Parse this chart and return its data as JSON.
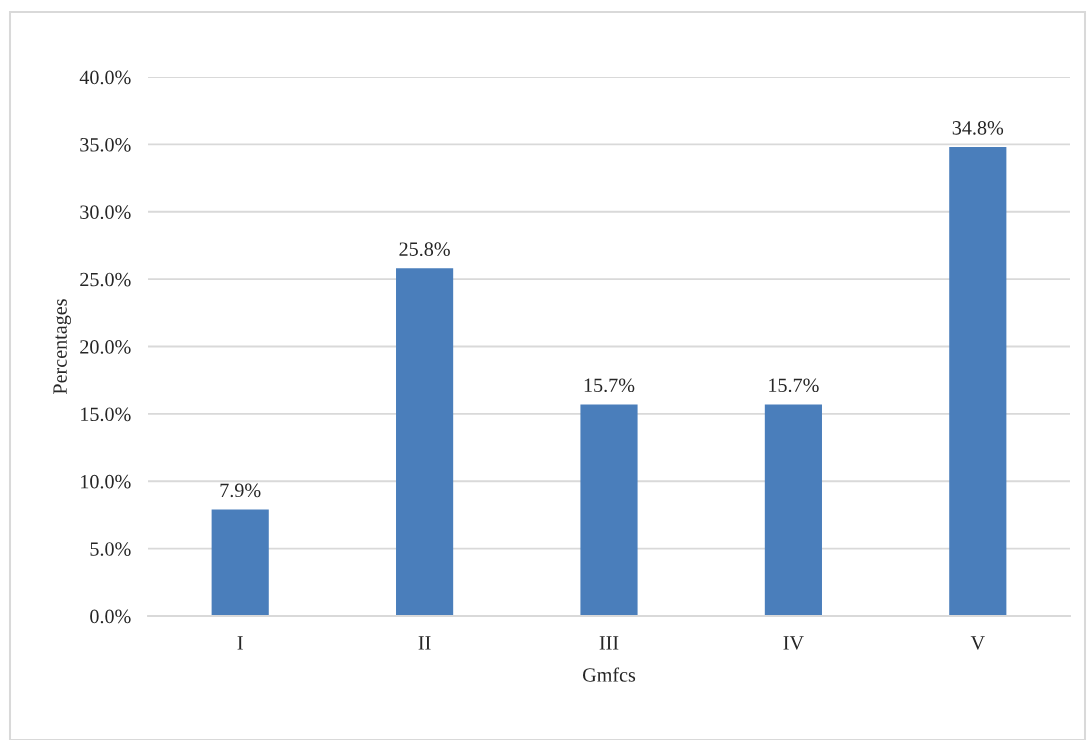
{
  "chart_data": {
    "type": "bar",
    "xlabel": "Gmfcs",
    "ylabel": "Percentages",
    "categories": [
      "I",
      "II",
      "III",
      "IV",
      "V"
    ],
    "values": [
      7.9,
      25.8,
      15.7,
      15.7,
      34.8
    ],
    "value_labels": [
      "7.9%",
      "25.8%",
      "15.7%",
      "15.7%",
      "34.8%"
    ],
    "color": "#4a7ebb",
    "ylim": [
      0,
      40
    ],
    "yticks": [
      {
        "value": 0,
        "label": "0.0%"
      },
      {
        "value": 5,
        "label": "5.0%"
      },
      {
        "value": 10,
        "label": "10.0%"
      },
      {
        "value": 15,
        "label": "15.0%"
      },
      {
        "value": 20,
        "label": "20.0%"
      },
      {
        "value": 25,
        "label": "25.0%"
      },
      {
        "value": 30,
        "label": "30.0%"
      },
      {
        "value": 35,
        "label": "35.0%"
      },
      {
        "value": 40,
        "label": "40.0%"
      }
    ],
    "grid": "y",
    "legend": false
  }
}
